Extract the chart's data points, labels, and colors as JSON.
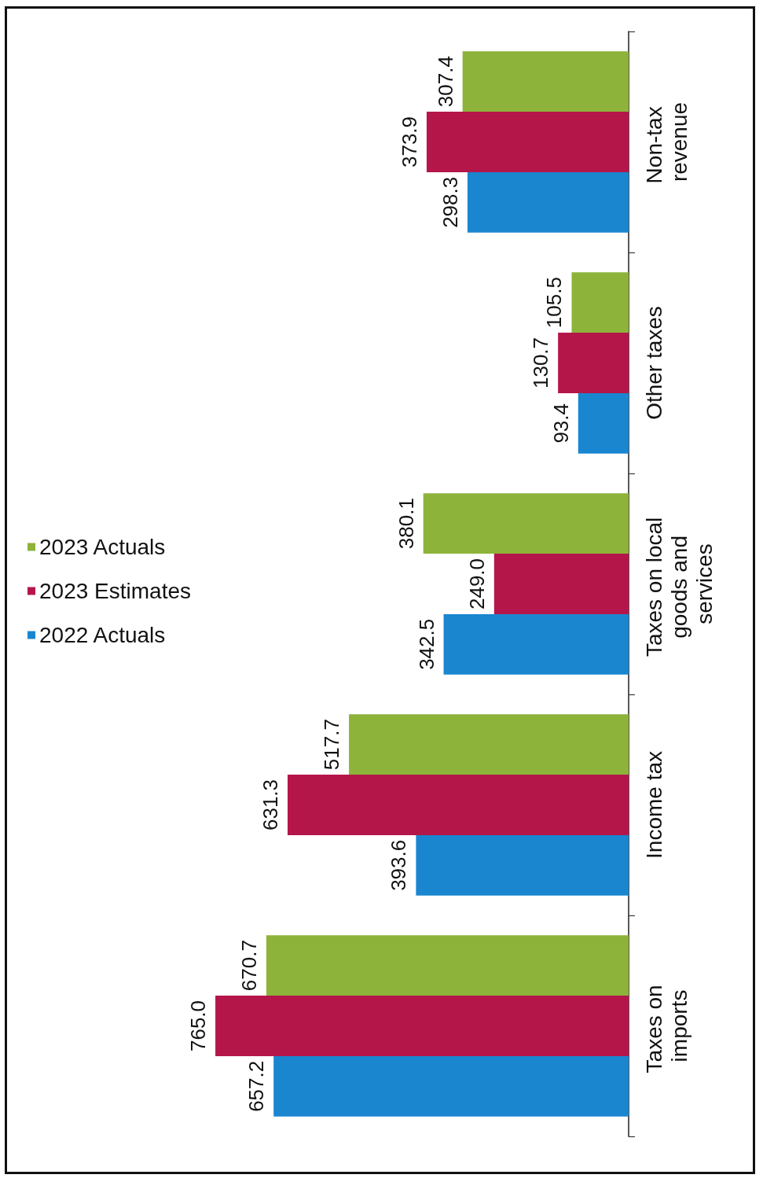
{
  "chart_data": {
    "type": "bar",
    "orientation": "horizontal",
    "categories": [
      "Non-tax revenue",
      "Other taxes",
      "Taxes on local goods and services",
      "Income tax",
      "Taxes on imports"
    ],
    "series": [
      {
        "name": "2023 Actuals",
        "color": "#8db33a",
        "values": [
          307.4,
          105.5,
          380.1,
          517.7,
          670.7
        ],
        "value_labels": [
          "307.4",
          "105.5",
          "380.1",
          "517.7",
          "670.7"
        ]
      },
      {
        "name": "2023 Estimates",
        "color": "#b5164a",
        "values": [
          373.9,
          130.7,
          249.0,
          631.3,
          765.0
        ],
        "value_labels": [
          "373.9",
          "130.7",
          "249.0",
          "631.3",
          "765.0"
        ]
      },
      {
        "name": "2022 Actuals",
        "color": "#1a86d0",
        "values": [
          298.3,
          93.4,
          342.5,
          393.6,
          657.2
        ],
        "value_labels": [
          "298.3",
          "93.4",
          "342.5",
          "393.6",
          "657.2"
        ]
      }
    ],
    "legend": "left"
  }
}
